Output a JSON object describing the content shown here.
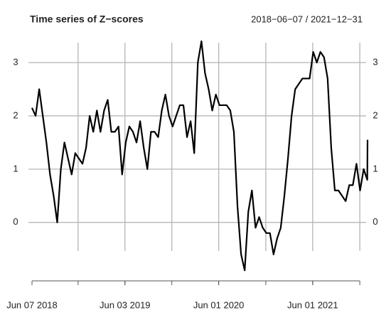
{
  "chart_data": {
    "type": "line",
    "title": "Time series of Z−scores",
    "subtitle": "2018−06−07 / 2021−12−31",
    "x": [
      "2018-06-07",
      "2018-06-21",
      "2018-07-05",
      "2018-07-19",
      "2018-08-02",
      "2018-08-16",
      "2018-08-30",
      "2018-09-13",
      "2018-09-27",
      "2018-10-11",
      "2018-10-25",
      "2018-11-08",
      "2018-11-22",
      "2018-12-06",
      "2018-12-20",
      "2019-01-03",
      "2019-01-17",
      "2019-01-31",
      "2019-02-14",
      "2019-02-28",
      "2019-03-14",
      "2019-03-28",
      "2019-04-11",
      "2019-04-25",
      "2019-05-09",
      "2019-05-23",
      "2019-06-06",
      "2019-06-20",
      "2019-07-04",
      "2019-07-18",
      "2019-08-01",
      "2019-08-15",
      "2019-08-29",
      "2019-09-12",
      "2019-09-26",
      "2019-10-10",
      "2019-10-24",
      "2019-11-07",
      "2019-11-21",
      "2019-12-05",
      "2019-12-19",
      "2020-01-02",
      "2020-01-16",
      "2020-01-30",
      "2020-02-13",
      "2020-02-27",
      "2020-03-12",
      "2020-03-26",
      "2020-04-09",
      "2020-04-23",
      "2020-05-07",
      "2020-05-21",
      "2020-06-04",
      "2020-06-18",
      "2020-07-02",
      "2020-07-16",
      "2020-07-30",
      "2020-08-13",
      "2020-08-27",
      "2020-09-10",
      "2020-09-24",
      "2020-10-08",
      "2020-10-22",
      "2020-11-05",
      "2020-11-19",
      "2020-12-03",
      "2020-12-17",
      "2020-12-31",
      "2021-01-14",
      "2021-01-28",
      "2021-02-11",
      "2021-02-25",
      "2021-03-11",
      "2021-03-25",
      "2021-04-08",
      "2021-04-22",
      "2021-05-06",
      "2021-05-20",
      "2021-06-03",
      "2021-06-17",
      "2021-07-01",
      "2021-07-15",
      "2021-07-29",
      "2021-08-12",
      "2021-08-26",
      "2021-09-09",
      "2021-09-23",
      "2021-10-07",
      "2021-10-21",
      "2021-11-04",
      "2021-11-18",
      "2021-12-02",
      "2021-12-16",
      "2021-12-30",
      "2021-12-31"
    ],
    "values": [
      2.15,
      2.0,
      2.5,
      2.0,
      1.5,
      0.9,
      0.5,
      0.0,
      1.0,
      1.5,
      1.2,
      0.9,
      1.3,
      1.2,
      1.1,
      1.4,
      2.0,
      1.7,
      2.1,
      1.7,
      2.1,
      2.3,
      1.7,
      1.7,
      1.8,
      0.9,
      1.5,
      1.8,
      1.7,
      1.5,
      1.9,
      1.4,
      1.0,
      1.7,
      1.7,
      1.6,
      2.1,
      2.4,
      2.0,
      1.8,
      2.0,
      2.2,
      2.2,
      1.6,
      1.9,
      1.3,
      3.0,
      3.4,
      2.8,
      2.5,
      2.1,
      2.4,
      2.2,
      2.2,
      2.2,
      2.1,
      1.7,
      0.3,
      -0.6,
      -0.9,
      0.2,
      0.6,
      -0.1,
      0.1,
      -0.1,
      -0.2,
      -0.2,
      -0.6,
      -0.3,
      -0.1,
      0.5,
      1.2,
      2.0,
      2.5,
      2.6,
      2.7,
      2.7,
      2.7,
      3.2,
      3.0,
      3.2,
      3.1,
      2.7,
      1.4,
      0.6,
      0.6,
      0.5,
      0.4,
      0.7,
      0.7,
      1.1,
      0.6,
      1.0,
      0.8,
      1.55
    ],
    "color": "#000000",
    "xlim": [
      "2018-06-07",
      "2021-12-31"
    ],
    "xticks": [
      {
        "value": "2018-06-07",
        "label": "Jun 07 2018"
      },
      {
        "value": "2019-06-03",
        "label": "Jun 03 2019"
      },
      {
        "value": "2020-06-01",
        "label": "Jun 01 2020"
      },
      {
        "value": "2021-06-01",
        "label": "Jun 01 2021"
      }
    ],
    "xgrid": [
      "2018-12-03",
      "2019-06-03",
      "2019-12-02",
      "2020-06-01",
      "2020-12-01",
      "2021-06-01",
      "2021-12-01"
    ],
    "ylim": [
      -0.95,
      3.45
    ],
    "yticks": [
      0,
      1,
      2,
      3
    ],
    "grid": true
  }
}
